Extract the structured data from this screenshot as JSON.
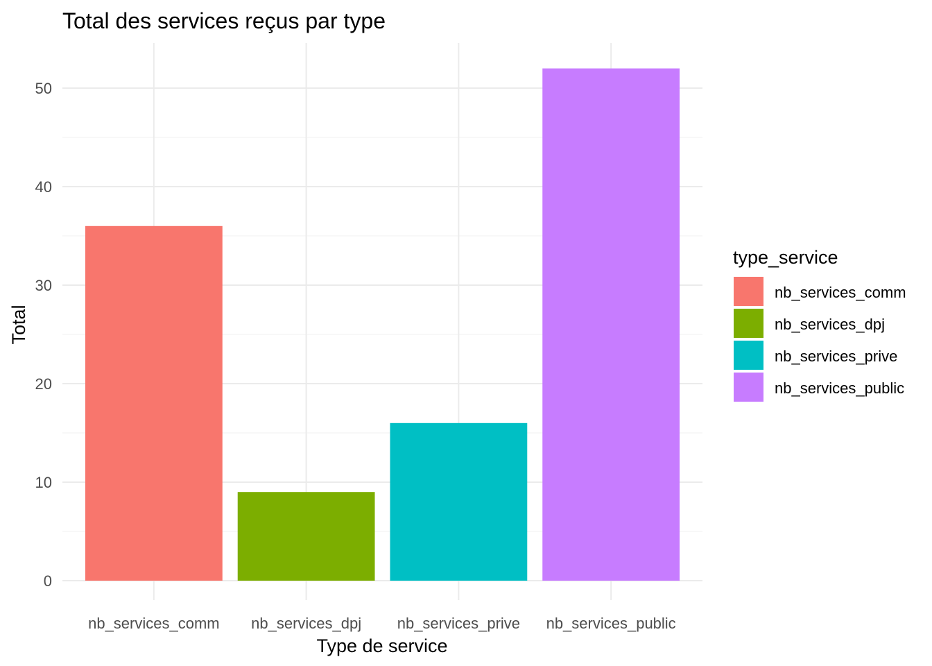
{
  "chart_data": {
    "type": "bar",
    "title": "Total des services reçus par type",
    "xlabel": "Type de service",
    "ylabel": "Total",
    "categories": [
      "nb_services_comm",
      "nb_services_dpj",
      "nb_services_prive",
      "nb_services_public"
    ],
    "values": [
      36,
      9,
      16,
      52
    ],
    "colors": [
      "#F8766D",
      "#7CAE00",
      "#00BFC4",
      "#C77CFF"
    ],
    "ylim": [
      0,
      54.6
    ],
    "yticks": [
      0,
      10,
      20,
      30,
      40,
      50
    ],
    "grid": true,
    "legend": {
      "title": "type_service",
      "position": "right",
      "entries": [
        "nb_services_comm",
        "nb_services_dpj",
        "nb_services_prive",
        "nb_services_public"
      ]
    }
  }
}
